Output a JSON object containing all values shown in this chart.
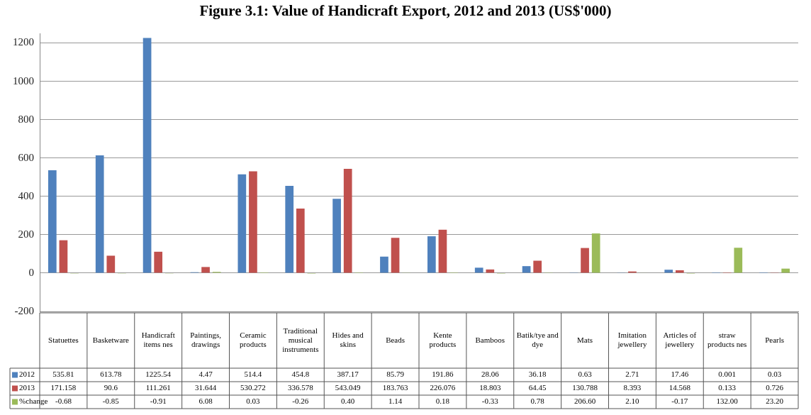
{
  "chart_data": {
    "type": "bar",
    "title": "Figure 3.1: Value of Handicraft Export, 2012 and 2013 (US$'000)",
    "categories": [
      "Statuettes",
      "Basketware",
      "Handicraft items nes",
      "Paintings, drawings",
      "Ceramic products",
      "Traditional musical instruments",
      "Hides and skins",
      "Beads",
      "Kente products",
      "Bamboos",
      "Batik/tye and dye",
      "Mats",
      "Imitation jewellery",
      "Articles of jewellery",
      "straw products nes",
      "Pearls"
    ],
    "series": [
      {
        "name": "2012",
        "color": "#4f81bd",
        "values": [
          535.81,
          613.78,
          1225.54,
          4.47,
          514.4,
          454.8,
          387.17,
          85.79,
          191.86,
          28.06,
          36.18,
          0.63,
          2.71,
          17.46,
          0.001,
          0.03
        ],
        "value_labels": [
          "535.81",
          "613.78",
          "1225.54",
          "4.47",
          "514.4",
          "454.8",
          "387.17",
          "85.79",
          "191.86",
          "28.06",
          "36.18",
          "0.63",
          "2.71",
          "17.46",
          "0.001",
          "0.03"
        ]
      },
      {
        "name": "2013",
        "color": "#c0504d",
        "values": [
          171.158,
          90.6,
          111.261,
          31.644,
          530.272,
          336.578,
          543.049,
          183.763,
          226.076,
          18.803,
          64.45,
          130.788,
          8.393,
          14.568,
          0.133,
          0.726
        ],
        "value_labels": [
          "171.158",
          "90.6",
          "111.261",
          "31.644",
          "530.272",
          "336.578",
          "543.049",
          "183.763",
          "226.076",
          "18.803",
          "64.45",
          "130.788",
          "8.393",
          "14.568",
          "0.133",
          "0.726"
        ]
      },
      {
        "name": "%change",
        "color": "#9bbb59",
        "values": [
          -0.68,
          -0.85,
          -0.91,
          6.08,
          0.03,
          -0.26,
          0.4,
          1.14,
          0.18,
          -0.33,
          0.78,
          206.6,
          2.1,
          -0.17,
          132,
          23.2
        ],
        "value_labels": [
          "-0.68",
          "-0.85",
          "-0.91",
          "6.08",
          "0.03",
          "-0.26",
          "0.40",
          "1.14",
          "0.18",
          "-0.33",
          "0.78",
          "206.60",
          "2.10",
          "-0.17",
          "132.00",
          "23.20"
        ]
      }
    ],
    "ylim": [
      -200,
      1250
    ],
    "yticks": [
      -200,
      0,
      200,
      400,
      600,
      800,
      1000,
      1200
    ],
    "grid": "y",
    "legend": "bottom left"
  }
}
